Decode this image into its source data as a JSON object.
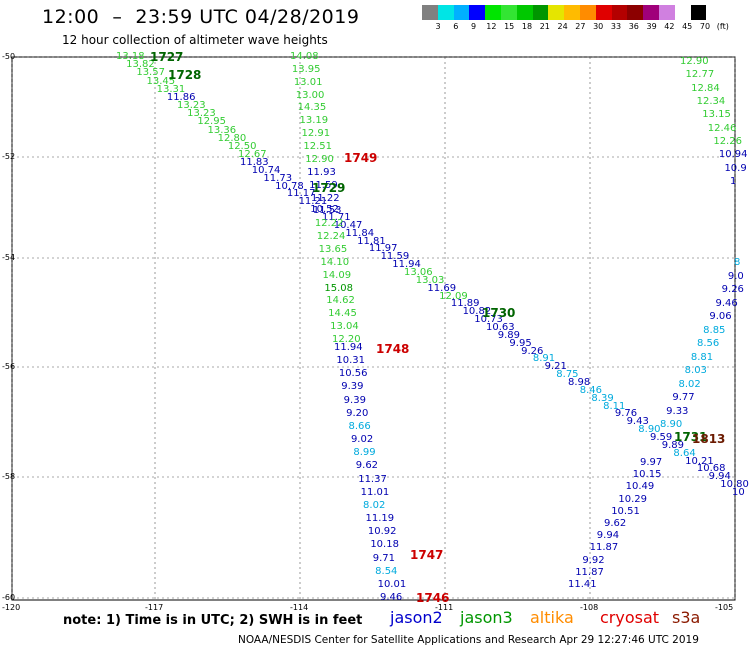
{
  "header": {
    "title": "12:00  –  23:59 UTC 04/28/2019",
    "subtitle": "12 hour collection of altimeter wave heights"
  },
  "colorbar": {
    "colors": [
      "#808080",
      "#00e5e5",
      "#00b0ff",
      "#0000ff",
      "#00e500",
      "#33e533",
      "#00c800",
      "#009600",
      "#e5e500",
      "#ffbb00",
      "#ff8c00",
      "#e00000",
      "#b40000",
      "#8c0000",
      "#a0007a",
      "#d080e0",
      "#ffffff",
      "#000000"
    ],
    "labels": [
      "3",
      "6",
      "9",
      "12",
      "15",
      "18",
      "21",
      "24",
      "27",
      "30",
      "33",
      "36",
      "39",
      "42",
      "45",
      "70",
      "(ft)"
    ]
  },
  "axes": {
    "y_labels": [
      "-50",
      "-52",
      "-54",
      "-56",
      "-58",
      "-60"
    ],
    "x_labels": [
      "-120",
      "-117",
      "-114",
      "-111",
      "-108",
      "-105"
    ]
  },
  "tracks": [
    {
      "name": "1727",
      "color": "#006400"
    },
    {
      "name": "1728",
      "color": "#006400"
    },
    {
      "name": "1749",
      "color": "#cc0000"
    },
    {
      "name": "1729",
      "color": "#006400"
    },
    {
      "name": "1730",
      "color": "#006400"
    },
    {
      "name": "1748",
      "color": "#cc0000"
    },
    {
      "name": "1747",
      "color": "#cc0000"
    },
    {
      "name": "1746",
      "color": "#cc0000"
    },
    {
      "name": "1731",
      "color": "#006400"
    },
    {
      "name": "1813",
      "color": "#6b1a00"
    }
  ],
  "tracks_a": [
    [
      "13.18",
      "#33cc33"
    ],
    [
      "13.82",
      "#33cc33"
    ],
    [
      "13.57",
      "#33cc33"
    ],
    [
      "13.45",
      "#33cc33"
    ],
    [
      "13.31",
      "#33cc33"
    ],
    [
      "11.86",
      "#0000b0"
    ],
    [
      "13.23",
      "#33cc33"
    ],
    [
      "13.23",
      "#33cc33"
    ],
    [
      "12.95",
      "#33cc33"
    ],
    [
      "13.36",
      "#33cc33"
    ],
    [
      "12.80",
      "#33cc33"
    ],
    [
      "12.50",
      "#33cc33"
    ],
    [
      "12.67",
      "#33cc33"
    ]
  ],
  "tracks_b": [
    [
      "11.83",
      "#0000b0"
    ],
    [
      "10.74",
      "#0000b0"
    ],
    [
      "11.73",
      "#0000b0"
    ],
    [
      "10.78",
      "#0000b0"
    ],
    [
      "11.17",
      "#0000b0"
    ],
    [
      "11.21",
      "#0000b0"
    ],
    [
      "10.52",
      "#0000b0"
    ],
    [
      "11.71",
      "#0000b0"
    ],
    [
      "10.47",
      "#0000b0"
    ],
    [
      "11.84",
      "#0000b0"
    ],
    [
      "11.81",
      "#0000b0"
    ],
    [
      "11.97",
      "#0000b0"
    ],
    [
      "11.59",
      "#0000b0"
    ],
    [
      "11.94",
      "#0000b0"
    ],
    [
      "13.06",
      "#33cc33"
    ],
    [
      "13.03",
      "#33cc33"
    ],
    [
      "11.69",
      "#0000b0"
    ],
    [
      "12.09",
      "#33cc33"
    ],
    [
      "11.89",
      "#0000b0"
    ],
    [
      "10.82",
      "#0000b0"
    ],
    [
      "10.73",
      "#0000b0"
    ],
    [
      "10.63",
      "#0000b0"
    ],
    [
      "9.89",
      "#0000b0"
    ],
    [
      "9.95",
      "#0000b0"
    ],
    [
      "9.26",
      "#0000b0"
    ],
    [
      "8.91",
      "#00aadd"
    ],
    [
      "9.21",
      "#0000b0"
    ],
    [
      "8.75",
      "#00aadd"
    ],
    [
      "8.98",
      "#0000b0"
    ],
    [
      "8.46",
      "#00aadd"
    ],
    [
      "8.39",
      "#00aadd"
    ],
    [
      "8.11",
      "#00aadd"
    ],
    [
      "9.76",
      "#0000b0"
    ],
    [
      "9.43",
      "#0000b0"
    ],
    [
      "8.90",
      "#00aadd"
    ],
    [
      "9.59",
      "#0000b0"
    ],
    [
      "9.89",
      "#0000b0"
    ],
    [
      "8.64",
      "#00aadd"
    ],
    [
      "10.21",
      "#0000b0"
    ],
    [
      "10.68",
      "#0000b0"
    ],
    [
      "9.94",
      "#0000b0"
    ],
    [
      "10.80",
      "#0000b0"
    ],
    [
      "10",
      "#0000b0"
    ]
  ],
  "tracks_c": [
    [
      "14.08",
      "#33cc33"
    ],
    [
      "13.95",
      "#33cc33"
    ],
    [
      "13.01",
      "#33cc33"
    ],
    [
      "13.00",
      "#33cc33"
    ],
    [
      "14.35",
      "#33cc33"
    ],
    [
      "13.19",
      "#33cc33"
    ],
    [
      "12.91",
      "#33cc33"
    ],
    [
      "12.51",
      "#33cc33"
    ],
    [
      "12.90",
      "#33cc33"
    ],
    [
      "11.93",
      "#0000b0"
    ],
    [
      "11.59",
      "#0000b0"
    ],
    [
      "11.22",
      "#0000b0"
    ],
    [
      "11.53",
      "#0000b0"
    ],
    [
      "12.22",
      "#33cc33"
    ],
    [
      "12.24",
      "#33cc33"
    ],
    [
      "13.65",
      "#33cc33"
    ],
    [
      "14.10",
      "#33cc33"
    ],
    [
      "14.09",
      "#33cc33"
    ],
    [
      "15.08",
      "#009600"
    ],
    [
      "14.62",
      "#33cc33"
    ],
    [
      "14.45",
      "#33cc33"
    ],
    [
      "13.04",
      "#33cc33"
    ],
    [
      "12.20",
      "#33cc33"
    ]
  ],
  "tracks_d": [
    [
      "11.94",
      "#0000b0"
    ],
    [
      "10.31",
      "#0000b0"
    ],
    [
      "10.56",
      "#0000b0"
    ],
    [
      "9.39",
      "#0000b0"
    ],
    [
      "9.39",
      "#0000b0"
    ],
    [
      "9.20",
      "#0000b0"
    ],
    [
      "8.66",
      "#00aadd"
    ],
    [
      "9.02",
      "#0000b0"
    ],
    [
      "8.99",
      "#00aadd"
    ],
    [
      "9.62",
      "#0000b0"
    ],
    [
      "11.37",
      "#0000b0"
    ],
    [
      "11.01",
      "#0000b0"
    ],
    [
      "8.02",
      "#00aadd"
    ],
    [
      "11.19",
      "#0000b0"
    ],
    [
      "10.92",
      "#0000b0"
    ],
    [
      "10.18",
      "#0000b0"
    ],
    [
      "9.71",
      "#0000b0"
    ],
    [
      "8.54",
      "#00aadd"
    ],
    [
      "10.01",
      "#0000b0"
    ],
    [
      "9.46",
      "#0000b0"
    ]
  ],
  "tracks_e": [
    [
      "12.90",
      "#33cc33"
    ],
    [
      "12.77",
      "#33cc33"
    ],
    [
      "12.84",
      "#33cc33"
    ],
    [
      "12.34",
      "#33cc33"
    ],
    [
      "13.15",
      "#33cc33"
    ],
    [
      "12.46",
      "#33cc33"
    ],
    [
      "12.26",
      "#33cc33"
    ],
    [
      "10.94",
      "#0000b0"
    ],
    [
      "10.9",
      "#0000b0"
    ],
    [
      "1",
      "#0000b0"
    ]
  ],
  "tracks_f": [
    [
      "8",
      "#00aadd"
    ],
    [
      "9.0",
      "#0000b0"
    ],
    [
      "9.26",
      "#0000b0"
    ],
    [
      "9.46",
      "#0000b0"
    ],
    [
      "9.06",
      "#0000b0"
    ],
    [
      "8.85",
      "#00aadd"
    ],
    [
      "8.56",
      "#00aadd"
    ],
    [
      "8.81",
      "#00aadd"
    ],
    [
      "8.03",
      "#00aadd"
    ],
    [
      "8.02",
      "#00aadd"
    ],
    [
      "9.77",
      "#0000b0"
    ],
    [
      "9.33",
      "#0000b0"
    ],
    [
      "8.90",
      "#00aadd"
    ]
  ],
  "tracks_g": [
    [
      "9.97",
      "#0000b0"
    ],
    [
      "10.15",
      "#0000b0"
    ],
    [
      "10.49",
      "#0000b0"
    ],
    [
      "10.29",
      "#0000b0"
    ],
    [
      "10.51",
      "#0000b0"
    ],
    [
      "9.62",
      "#0000b0"
    ],
    [
      "9.94",
      "#0000b0"
    ],
    [
      "11.87",
      "#0000b0"
    ],
    [
      "9.92",
      "#0000b0"
    ],
    [
      "11.87",
      "#0000b0"
    ],
    [
      "11.41",
      "#0000b0"
    ]
  ],
  "note": "note: 1) Time is in UTC; 2) SWH is in feet",
  "legend": [
    {
      "label": "jason2",
      "color": "#0000cc"
    },
    {
      "label": "jason3",
      "color": "#009600"
    },
    {
      "label": "altika",
      "color": "#ff8c00"
    },
    {
      "label": "cryosat",
      "color": "#e00000"
    },
    {
      "label": "s3a",
      "color": "#8b1a00"
    }
  ],
  "footer": "NOAA/NESDIS Center for Satellite Applications and Research    Apr 29 12:27:46 UTC 2019"
}
